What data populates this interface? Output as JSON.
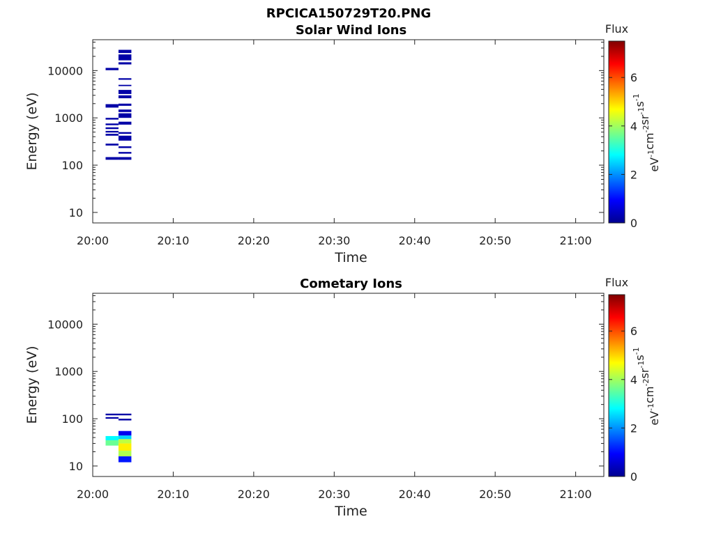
{
  "figure_title": "RPCICA150729T20.PNG",
  "chart_data": [
    {
      "type": "heatmap",
      "title": "Solar Wind Ions",
      "xlabel": "Time",
      "ylabel": "Energy (eV)",
      "x_ticks": [
        "20:00",
        "20:10",
        "20:20",
        "20:30",
        "20:40",
        "20:50",
        "21:00"
      ],
      "xlim_minutes": [
        0,
        63.5
      ],
      "y_scale": "log",
      "y_ticks": [
        "10",
        "100",
        "1000",
        "10000"
      ],
      "ylim": [
        6,
        45000
      ],
      "colorbar": {
        "title": "Flux",
        "units": "eV-1 cm-2 sr-1 s-1",
        "ticks": [
          "0",
          "2",
          "4",
          "6"
        ],
        "range": [
          0,
          7.5
        ]
      },
      "cells": [
        {
          "t0": 1.6,
          "t1": 3.2,
          "e0": 10200,
          "e1": 11400,
          "v": 0.2
        },
        {
          "t0": 1.6,
          "t1": 3.2,
          "e0": 1650,
          "e1": 1950,
          "v": 0.2
        },
        {
          "t0": 1.6,
          "t1": 3.2,
          "e0": 920,
          "e1": 1000,
          "v": 0.2
        },
        {
          "t0": 1.6,
          "t1": 3.2,
          "e0": 700,
          "e1": 760,
          "v": 0.2
        },
        {
          "t0": 1.6,
          "t1": 3.2,
          "e0": 580,
          "e1": 630,
          "v": 0.2
        },
        {
          "t0": 1.6,
          "t1": 3.2,
          "e0": 490,
          "e1": 530,
          "v": 0.2
        },
        {
          "t0": 1.6,
          "t1": 3.2,
          "e0": 420,
          "e1": 460,
          "v": 0.2
        },
        {
          "t0": 1.6,
          "t1": 3.2,
          "e0": 260,
          "e1": 285,
          "v": 0.2
        },
        {
          "t0": 1.6,
          "t1": 3.2,
          "e0": 130,
          "e1": 148,
          "v": 0.2
        },
        {
          "t0": 3.2,
          "t1": 4.8,
          "e0": 130,
          "e1": 148,
          "v": 0.2
        },
        {
          "t0": 3.2,
          "t1": 4.8,
          "e0": 175,
          "e1": 190,
          "v": 0.2
        },
        {
          "t0": 3.2,
          "t1": 4.8,
          "e0": 230,
          "e1": 250,
          "v": 0.2
        },
        {
          "t0": 3.2,
          "t1": 4.8,
          "e0": 330,
          "e1": 420,
          "v": 0.2
        },
        {
          "t0": 3.2,
          "t1": 4.8,
          "e0": 460,
          "e1": 500,
          "v": 0.2
        },
        {
          "t0": 3.2,
          "t1": 4.8,
          "e0": 720,
          "e1": 830,
          "v": 0.2
        },
        {
          "t0": 3.2,
          "t1": 4.8,
          "e0": 1000,
          "e1": 1250,
          "v": 0.2
        },
        {
          "t0": 3.2,
          "t1": 4.8,
          "e0": 1330,
          "e1": 1500,
          "v": 0.2
        },
        {
          "t0": 3.2,
          "t1": 4.8,
          "e0": 1800,
          "e1": 2000,
          "v": 0.2
        },
        {
          "t0": 3.2,
          "t1": 4.8,
          "e0": 2600,
          "e1": 3000,
          "v": 0.2
        },
        {
          "t0": 3.2,
          "t1": 4.8,
          "e0": 3200,
          "e1": 3900,
          "v": 0.2
        },
        {
          "t0": 3.2,
          "t1": 4.8,
          "e0": 4700,
          "e1": 5000,
          "v": 0.2
        },
        {
          "t0": 3.2,
          "t1": 4.8,
          "e0": 6400,
          "e1": 6900,
          "v": 0.2
        },
        {
          "t0": 3.2,
          "t1": 4.8,
          "e0": 13500,
          "e1": 15000,
          "v": 0.2
        },
        {
          "t0": 3.2,
          "t1": 4.8,
          "e0": 16500,
          "e1": 22000,
          "v": 0.2
        },
        {
          "t0": 3.2,
          "t1": 4.8,
          "e0": 23500,
          "e1": 27500,
          "v": 0.2
        }
      ]
    },
    {
      "type": "heatmap",
      "title": "Cometary Ions",
      "xlabel": "Time",
      "ylabel": "Energy (eV)",
      "x_ticks": [
        "20:00",
        "20:10",
        "20:20",
        "20:30",
        "20:40",
        "20:50",
        "21:00"
      ],
      "xlim_minutes": [
        0,
        63.5
      ],
      "y_scale": "log",
      "y_ticks": [
        "10",
        "100",
        "1000",
        "10000"
      ],
      "ylim": [
        6,
        45000
      ],
      "colorbar": {
        "title": "Flux",
        "units": "eV-1 cm-2 sr-1 s-1",
        "ticks": [
          "0",
          "2",
          "4",
          "6"
        ],
        "range": [
          0,
          7.5
        ]
      },
      "cells": [
        {
          "t0": 1.6,
          "t1": 3.2,
          "e0": 118,
          "e1": 128,
          "v": 0.2
        },
        {
          "t0": 1.6,
          "t1": 3.2,
          "e0": 100,
          "e1": 108,
          "v": 0.2
        },
        {
          "t0": 1.6,
          "t1": 3.2,
          "e0": 35,
          "e1": 43,
          "v": 2.8
        },
        {
          "t0": 1.6,
          "t1": 3.2,
          "e0": 27,
          "e1": 35,
          "v": 3.6
        },
        {
          "t0": 3.2,
          "t1": 4.8,
          "e0": 118,
          "e1": 128,
          "v": 0.2
        },
        {
          "t0": 3.2,
          "t1": 4.8,
          "e0": 92,
          "e1": 100,
          "v": 0.2
        },
        {
          "t0": 3.2,
          "t1": 4.8,
          "e0": 44,
          "e1": 55,
          "v": 0.8
        },
        {
          "t0": 3.2,
          "t1": 4.8,
          "e0": 37,
          "e1": 44,
          "v": 2.5
        },
        {
          "t0": 3.2,
          "t1": 4.8,
          "e0": 30,
          "e1": 37,
          "v": 4.2
        },
        {
          "t0": 3.2,
          "t1": 4.8,
          "e0": 21,
          "e1": 30,
          "v": 4.8
        },
        {
          "t0": 3.2,
          "t1": 4.8,
          "e0": 16,
          "e1": 21,
          "v": 4.1
        },
        {
          "t0": 3.2,
          "t1": 4.8,
          "e0": 12,
          "e1": 16,
          "v": 1.1
        }
      ]
    }
  ]
}
